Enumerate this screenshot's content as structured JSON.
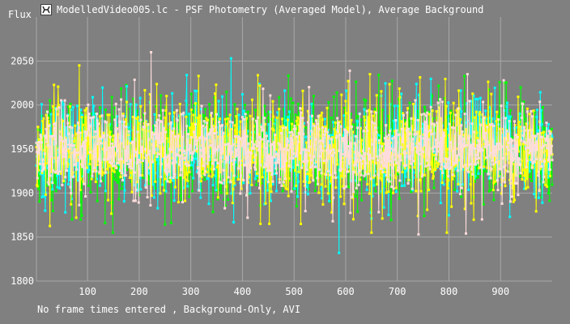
{
  "window": {
    "title": "ModelledVideo005.lc - PSF Photometry (Averaged Model), Average Background",
    "icon": "light-curve-app-icon"
  },
  "footer": "No frame times entered , Background-Only, AVI",
  "colors": {
    "background": "#808080",
    "grid": "#a8a8a8",
    "series_green": "#00ff00",
    "series_cyan": "#00ffff",
    "series_yellow": "#ffff00",
    "series_pink": "#ffdcdc"
  },
  "chart_data": {
    "type": "scatter",
    "ylabel": "Flux",
    "xlim": [
      1,
      1000
    ],
    "ylim": [
      1800,
      2100
    ],
    "x_ticks": [
      100,
      200,
      300,
      400,
      500,
      600,
      700,
      800,
      900
    ],
    "y_ticks": [
      1800,
      1850,
      1900,
      1950,
      2000,
      2050
    ],
    "grid": true,
    "connected_points": true,
    "series": [
      {
        "color": "#00ff00",
        "mean": 1950,
        "spread": 28,
        "extremes": [
          [
            70,
            1870
          ],
          [
            134,
            1866
          ],
          [
            262,
            1866
          ],
          [
            505,
            1885
          ],
          [
            623,
            1879
          ],
          [
            752,
            1874
          ],
          [
            830,
            2033
          ],
          [
            898,
            2026
          ]
        ]
      },
      {
        "color": "#00ffff",
        "mean": 1950,
        "spread": 27,
        "extremes": [
          [
            18,
            1880
          ],
          [
            240,
            1900
          ],
          [
            292,
            2034
          ],
          [
            378,
            2053
          ],
          [
            587,
            1832
          ],
          [
            650,
            1871
          ],
          [
            737,
            2024
          ],
          [
            918,
            1873
          ]
        ]
      },
      {
        "color": "#ffff00",
        "mean": 1950,
        "spread": 28,
        "extremes": [
          [
            78,
            1872
          ],
          [
            224,
            1897
          ],
          [
            315,
            2033
          ],
          [
            435,
            1865
          ],
          [
            573,
            1878
          ],
          [
            647,
            2035
          ],
          [
            831,
            1882
          ],
          [
            925,
            1890
          ]
        ]
      },
      {
        "color": "#ffdcdc",
        "mean": 1948,
        "spread": 24,
        "extremes": [
          [
            223,
            2060
          ],
          [
            222,
            1886
          ],
          [
            410,
            1872
          ],
          [
            575,
            1868
          ],
          [
            741,
            1853
          ],
          [
            836,
            2035
          ],
          [
            833,
            1854
          ],
          [
            864,
            1870
          ]
        ]
      }
    ]
  }
}
